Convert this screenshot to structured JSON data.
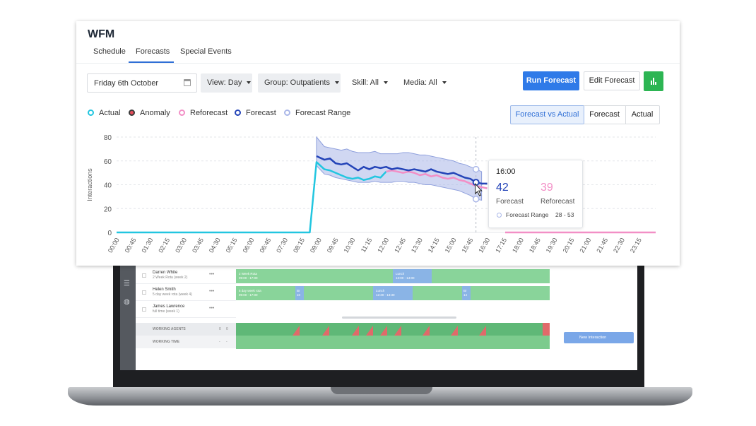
{
  "app": {
    "title": "WFM"
  },
  "tabs": [
    {
      "label": "Schedule"
    },
    {
      "label": "Forecasts",
      "active": true
    },
    {
      "label": "Special Events"
    }
  ],
  "toolbar": {
    "date_value": "Friday 6th October",
    "view": "View: Day",
    "group": "Group: Outpatients",
    "skill": "Skill: All",
    "media": "Media: All",
    "run_forecast": "Run Forecast",
    "edit_forecast": "Edit Forecast"
  },
  "legend": [
    {
      "label": "Actual",
      "color": "#22c6e0"
    },
    {
      "label": "Anomaly",
      "color": "#e74c5a"
    },
    {
      "label": "Reforecast",
      "color": "#f28fc6"
    },
    {
      "label": "Forecast",
      "color": "#2444b8"
    },
    {
      "label": "Forecast Range",
      "color": "#aab7e8"
    }
  ],
  "view_toggle": [
    {
      "label": "Forecast vs Actual",
      "active": true
    },
    {
      "label": "Forecast"
    },
    {
      "label": "Actual"
    }
  ],
  "tooltip": {
    "time": "16:00",
    "forecast_value": "42",
    "forecast_label": "Forecast",
    "reforecast_value": "39",
    "reforecast_label": "Reforecast",
    "range_label": "Forecast Range",
    "range_value": "28 - 53"
  },
  "chart_data": {
    "type": "line",
    "ylabel": "Interactions",
    "ylim": [
      0,
      80
    ],
    "yticks": [
      0,
      20,
      40,
      60,
      80
    ],
    "xticks": [
      "00:00",
      "00:45",
      "01:30",
      "02:15",
      "03:00",
      "03:45",
      "04:30",
      "05:15",
      "06:00",
      "06:45",
      "07:30",
      "08:15",
      "09:00",
      "09:45",
      "10:30",
      "11:15",
      "12:00",
      "12:45",
      "13:30",
      "14:15",
      "15:00",
      "15:45",
      "16:30",
      "17:15",
      "18:00",
      "18:45",
      "19:30",
      "20:15",
      "21:00",
      "21:45",
      "22:30",
      "23:15"
    ],
    "grid": true,
    "series": [
      {
        "name": "Actual",
        "color": "#22c6e0",
        "points": [
          [
            0,
            0
          ],
          [
            8.6,
            0
          ],
          [
            8.9,
            59
          ],
          [
            9.25,
            53
          ],
          [
            9.5,
            52
          ],
          [
            9.75,
            50
          ],
          [
            10,
            48
          ],
          [
            10.25,
            46
          ],
          [
            10.5,
            45
          ],
          [
            10.75,
            46
          ],
          [
            11,
            44
          ],
          [
            11.25,
            45
          ],
          [
            11.5,
            47
          ],
          [
            11.75,
            46
          ],
          [
            12,
            51
          ]
        ]
      },
      {
        "name": "Reforecast",
        "color": "#f28fc6",
        "points": [
          [
            12,
            51
          ],
          [
            12.25,
            52
          ],
          [
            12.5,
            51
          ],
          [
            12.75,
            50
          ],
          [
            13,
            51
          ],
          [
            13.25,
            50
          ],
          [
            13.5,
            48
          ],
          [
            13.75,
            49
          ],
          [
            14,
            47
          ],
          [
            14.25,
            48
          ],
          [
            14.5,
            46
          ],
          [
            14.75,
            45
          ],
          [
            15,
            46
          ],
          [
            15.25,
            44
          ],
          [
            15.5,
            43
          ],
          [
            15.75,
            41
          ],
          [
            16,
            39
          ],
          [
            16.25,
            38
          ],
          [
            16.5,
            37
          ]
        ]
      },
      {
        "name": "Reforecast (later)",
        "color": "#f28fc6",
        "points": [
          [
            17.3,
            0
          ],
          [
            24,
            0
          ]
        ]
      },
      {
        "name": "Forecast",
        "color": "#2444b8",
        "points": [
          [
            8.9,
            64
          ],
          [
            9.25,
            61
          ],
          [
            9.5,
            62
          ],
          [
            9.75,
            58
          ],
          [
            10,
            57
          ],
          [
            10.25,
            58
          ],
          [
            10.5,
            55
          ],
          [
            10.75,
            52
          ],
          [
            11,
            55
          ],
          [
            11.25,
            53
          ],
          [
            11.5,
            55
          ],
          [
            11.75,
            54
          ],
          [
            12,
            55
          ],
          [
            12.25,
            53
          ],
          [
            12.5,
            54
          ],
          [
            12.75,
            53
          ],
          [
            13,
            52
          ],
          [
            13.25,
            53
          ],
          [
            13.5,
            52
          ],
          [
            13.75,
            51
          ],
          [
            14,
            53
          ],
          [
            14.25,
            51
          ],
          [
            14.5,
            50
          ],
          [
            14.75,
            49
          ],
          [
            15,
            50
          ],
          [
            15.25,
            48
          ],
          [
            15.5,
            46
          ],
          [
            15.75,
            45
          ],
          [
            16,
            42
          ],
          [
            16.25,
            41
          ],
          [
            16.5,
            41
          ]
        ]
      },
      {
        "name": "Forecast Range",
        "color": "#aab7e8",
        "upper": [
          [
            8.9,
            80
          ],
          [
            9.25,
            72
          ],
          [
            9.5,
            71
          ],
          [
            9.75,
            70
          ],
          [
            10,
            69
          ],
          [
            10.25,
            70
          ],
          [
            10.5,
            68
          ],
          [
            10.75,
            67
          ],
          [
            11,
            67
          ],
          [
            11.25,
            67
          ],
          [
            11.5,
            68
          ],
          [
            11.75,
            66
          ],
          [
            12,
            66
          ],
          [
            12.25,
            66
          ],
          [
            12.5,
            66
          ],
          [
            12.75,
            67
          ],
          [
            13,
            67
          ],
          [
            13.25,
            66
          ],
          [
            13.5,
            65
          ],
          [
            13.75,
            65
          ],
          [
            14,
            64
          ],
          [
            14.25,
            63
          ],
          [
            14.5,
            62
          ],
          [
            14.75,
            61
          ],
          [
            15,
            60
          ],
          [
            15.25,
            58
          ],
          [
            15.5,
            57
          ],
          [
            15.75,
            55
          ],
          [
            16,
            53
          ],
          [
            16.25,
            51
          ]
        ],
        "lower": [
          [
            8.9,
            56
          ],
          [
            9.25,
            49
          ],
          [
            9.5,
            48
          ],
          [
            9.75,
            46
          ],
          [
            10,
            45
          ],
          [
            10.25,
            44
          ],
          [
            10.5,
            43
          ],
          [
            10.75,
            42
          ],
          [
            11,
            42
          ],
          [
            11.25,
            42
          ],
          [
            11.5,
            43
          ],
          [
            11.75,
            42
          ],
          [
            12,
            42
          ],
          [
            12.25,
            42
          ],
          [
            12.5,
            43
          ],
          [
            12.75,
            43
          ],
          [
            13,
            42
          ],
          [
            13.25,
            42
          ],
          [
            13.5,
            41
          ],
          [
            13.75,
            40
          ],
          [
            14,
            40
          ],
          [
            14.25,
            39
          ],
          [
            14.5,
            38
          ],
          [
            14.75,
            37
          ],
          [
            15,
            36
          ],
          [
            15.25,
            35
          ],
          [
            15.5,
            33
          ],
          [
            15.75,
            31
          ],
          [
            16,
            28
          ],
          [
            16.25,
            27
          ]
        ]
      }
    ]
  },
  "schedule": {
    "rows": [
      {
        "name": "Darren White",
        "rota": "2 Week Rota (week 2)"
      },
      {
        "name": "Helen Smith",
        "rota": "5 day week rota (week 4)"
      },
      {
        "name": "James Lawrence",
        "rota": "full time (week 1)"
      }
    ],
    "bars": {
      "darren_rota": "2 Week Rota",
      "darren_rota_time": "09:00 - 17:00",
      "darren_lunch": "Lunch",
      "darren_lunch_time": "13:00 - 14:00",
      "helen_rota": "5 day week rota",
      "helen_rota_time": "09:00 - 17:00",
      "helen_br1": "Br",
      "helen_br1_n": "10",
      "helen_lunch": "Lunch",
      "helen_lunch_time": "12:30 - 13:30",
      "helen_br2": "Br",
      "helen_br2_n": "14"
    },
    "working_agents_label": "WORKING AGENTS",
    "working_agents_counts": [
      "0",
      "0"
    ],
    "working_time_label": "WORKING TIME",
    "working_time_counts": [
      "-",
      "-"
    ],
    "new_interaction": "New Interaction",
    "dots": "•••"
  }
}
